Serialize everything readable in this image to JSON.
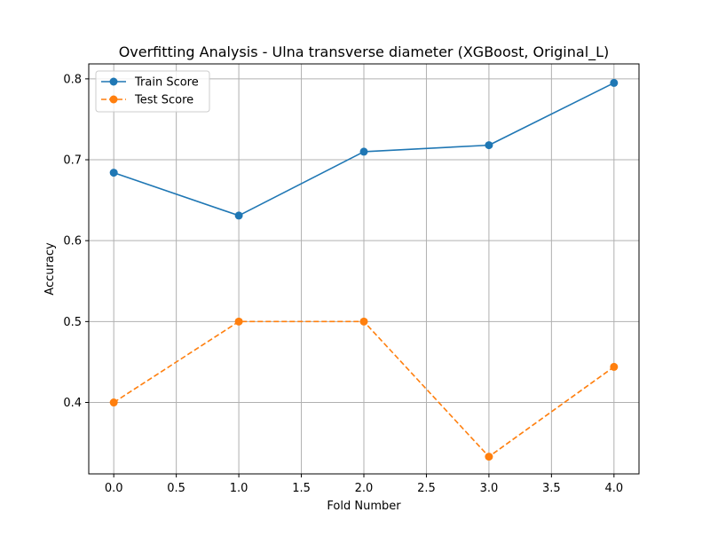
{
  "chart_data": {
    "type": "line",
    "title": "Overfitting Analysis - Ulna transverse diameter (XGBoost, Original_L)",
    "xlabel": "Fold Number",
    "ylabel": "Accuracy",
    "x": [
      0,
      1,
      2,
      3,
      4
    ],
    "xlim": [
      -0.2,
      4.2
    ],
    "ylim": [
      0.3117,
      0.8185
    ],
    "xticks": [
      0.0,
      0.5,
      1.0,
      1.5,
      2.0,
      2.5,
      3.0,
      3.5,
      4.0
    ],
    "xtick_labels": [
      "0.0",
      "0.5",
      "1.0",
      "1.5",
      "2.0",
      "2.5",
      "3.0",
      "3.5",
      "4.0"
    ],
    "yticks": [
      0.4,
      0.5,
      0.6,
      0.7,
      0.8
    ],
    "ytick_labels": [
      "0.4",
      "0.5",
      "0.6",
      "0.7",
      "0.8"
    ],
    "grid": true,
    "legend_position": "upper-left",
    "series": [
      {
        "name": "Train Score",
        "values": [
          0.684,
          0.631,
          0.71,
          0.718,
          0.795
        ],
        "color": "#1f77b4",
        "line_style": "solid",
        "marker": "circle"
      },
      {
        "name": "Test Score",
        "values": [
          0.4,
          0.5,
          0.5,
          0.333,
          0.444
        ],
        "color": "#ff7f0e",
        "line_style": "dashed",
        "marker": "circle"
      }
    ]
  }
}
